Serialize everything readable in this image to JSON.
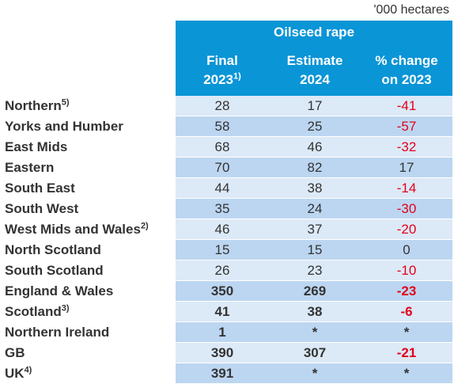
{
  "unit_label": "'000 hectares",
  "group_header": "Oilseed rape",
  "columns": [
    {
      "line1": "Final",
      "line2": "2023",
      "sup": "1)"
    },
    {
      "line1": "Estimate",
      "line2": "2024",
      "sup": ""
    },
    {
      "line1": "% change",
      "line2": "on 2023",
      "sup": ""
    }
  ],
  "rows": [
    {
      "label": "Northern",
      "sup": "5)",
      "final_2023": "28",
      "estimate_2024": "17",
      "change": "-41",
      "negative": true,
      "bold": false
    },
    {
      "label": "Yorks and Humber",
      "sup": "",
      "final_2023": "58",
      "estimate_2024": "25",
      "change": "-57",
      "negative": true,
      "bold": false
    },
    {
      "label": "East Mids",
      "sup": "",
      "final_2023": "68",
      "estimate_2024": "46",
      "change": "-32",
      "negative": true,
      "bold": false
    },
    {
      "label": "Eastern",
      "sup": "",
      "final_2023": "70",
      "estimate_2024": "82",
      "change": "17",
      "negative": false,
      "bold": false
    },
    {
      "label": "South East",
      "sup": "",
      "final_2023": "44",
      "estimate_2024": "38",
      "change": "-14",
      "negative": true,
      "bold": false
    },
    {
      "label": "South West",
      "sup": "",
      "final_2023": "35",
      "estimate_2024": "24",
      "change": "-30",
      "negative": true,
      "bold": false
    },
    {
      "label": "West Mids and Wales",
      "sup": "2)",
      "final_2023": "46",
      "estimate_2024": "37",
      "change": "-20",
      "negative": true,
      "bold": false
    },
    {
      "label": "North Scotland",
      "sup": "",
      "final_2023": "15",
      "estimate_2024": "15",
      "change": "0",
      "negative": false,
      "bold": false
    },
    {
      "label": "South Scotland",
      "sup": "",
      "final_2023": "26",
      "estimate_2024": "23",
      "change": "-10",
      "negative": true,
      "bold": false
    },
    {
      "label": "England & Wales",
      "sup": "",
      "final_2023": "350",
      "estimate_2024": "269",
      "change": "-23",
      "negative": true,
      "bold": true
    },
    {
      "label": "Scotland",
      "sup": "3)",
      "final_2023": "41",
      "estimate_2024": "38",
      "change": "-6",
      "negative": true,
      "bold": true
    },
    {
      "label": "Northern Ireland",
      "sup": "",
      "final_2023": "1",
      "estimate_2024": "*",
      "change": "*",
      "negative": false,
      "bold": true
    },
    {
      "label": "GB",
      "sup": "",
      "final_2023": "390",
      "estimate_2024": "307",
      "change": "-21",
      "negative": true,
      "bold": true
    },
    {
      "label": "UK",
      "sup": "4)",
      "final_2023": "391",
      "estimate_2024": "*",
      "change": "*",
      "negative": false,
      "bold": true
    }
  ],
  "colors": {
    "header_bg": "#0a95d6",
    "row_light": "#dce9f7",
    "row_dark": "#bcd6f1",
    "negative": "#e3001b"
  }
}
